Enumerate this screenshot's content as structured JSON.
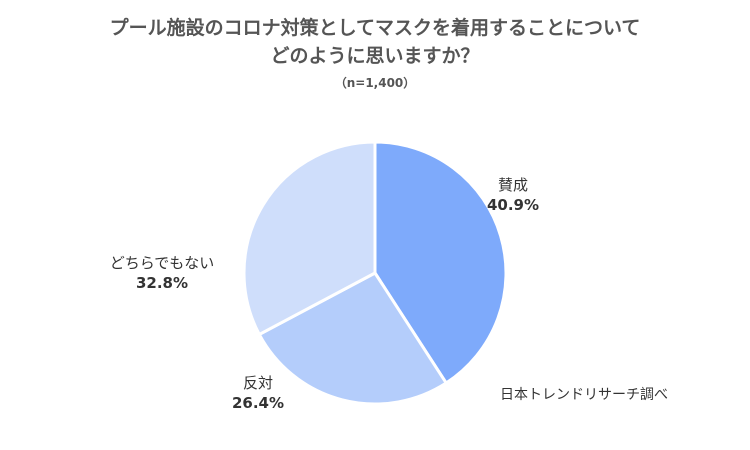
{
  "title_line1": "プール施設のコロナ対策としてマスクを着用することについて",
  "title_line2": "どのように思いますか？",
  "subtitle": "（n=1,400）",
  "source": "日本トレンドリサーチ調べ",
  "chart_data": {
    "type": "pie",
    "title": "プール施設のコロナ対策としてマスクを着用することについてどのように思いますか？",
    "subtitle": "（n=1,400）",
    "slices": [
      {
        "label": "賛成",
        "value": 40.9,
        "display": "40.9%",
        "color": "#7eaafb"
      },
      {
        "label": "反対",
        "value": 26.4,
        "display": "26.4%",
        "color": "#b4cdfb"
      },
      {
        "label": "どちらでもない",
        "value": 32.8,
        "display": "32.8%",
        "color": "#cfdefb"
      }
    ],
    "start": "12 o'clock",
    "direction": "clockwise",
    "legend": "none"
  }
}
